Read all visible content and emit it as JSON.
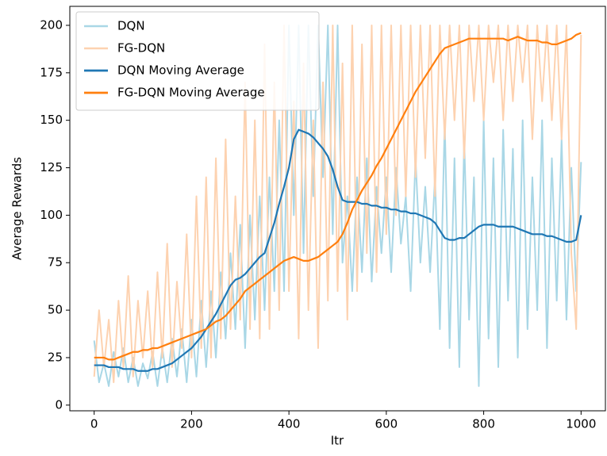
{
  "chart_data": {
    "type": "line",
    "xlabel": "Itr",
    "ylabel": "Average Rewards",
    "xlim": [
      -50,
      1050
    ],
    "ylim": [
      -3,
      210
    ],
    "xticks": [
      0,
      200,
      400,
      600,
      800,
      1000
    ],
    "yticks": [
      0,
      25,
      50,
      75,
      100,
      125,
      150,
      175,
      200
    ],
    "legend": "upper left",
    "x": [
      0,
      10,
      20,
      30,
      40,
      50,
      60,
      70,
      80,
      90,
      100,
      110,
      120,
      130,
      140,
      150,
      160,
      170,
      180,
      190,
      200,
      210,
      220,
      230,
      240,
      250,
      260,
      270,
      280,
      290,
      300,
      310,
      320,
      330,
      340,
      350,
      360,
      370,
      380,
      390,
      400,
      410,
      420,
      430,
      440,
      450,
      460,
      470,
      480,
      490,
      500,
      510,
      520,
      530,
      540,
      550,
      560,
      570,
      580,
      590,
      600,
      610,
      620,
      630,
      640,
      650,
      660,
      670,
      680,
      690,
      700,
      710,
      720,
      730,
      740,
      750,
      760,
      770,
      780,
      790,
      800,
      810,
      820,
      830,
      840,
      850,
      860,
      870,
      880,
      890,
      900,
      910,
      920,
      930,
      940,
      950,
      960,
      970,
      980,
      990,
      1000
    ],
    "series": [
      {
        "name": "DQN",
        "color": "#a9d7e6",
        "width": 2,
        "values": [
          34,
          12,
          22,
          10,
          28,
          15,
          30,
          12,
          25,
          10,
          22,
          14,
          28,
          10,
          30,
          12,
          35,
          15,
          40,
          12,
          45,
          15,
          55,
          20,
          60,
          25,
          70,
          35,
          80,
          40,
          95,
          30,
          100,
          45,
          110,
          50,
          120,
          60,
          150,
          60,
          200,
          100,
          200,
          80,
          200,
          110,
          200,
          120,
          200,
          90,
          200,
          75,
          110,
          60,
          120,
          70,
          130,
          65,
          115,
          80,
          120,
          70,
          125,
          85,
          110,
          60,
          130,
          75,
          115,
          70,
          120,
          40,
          150,
          30,
          130,
          20,
          140,
          45,
          120,
          10,
          150,
          35,
          130,
          20,
          145,
          55,
          135,
          25,
          150,
          40,
          120,
          50,
          150,
          30,
          130,
          55,
          140,
          45,
          125,
          60,
          128
        ]
      },
      {
        "name": "FG-DQN",
        "color": "#fdd2b0",
        "width": 2,
        "values": [
          15,
          50,
          20,
          45,
          12,
          55,
          20,
          68,
          15,
          55,
          25,
          60,
          20,
          70,
          25,
          85,
          20,
          65,
          30,
          90,
          25,
          110,
          30,
          120,
          25,
          130,
          35,
          140,
          40,
          110,
          45,
          170,
          40,
          150,
          35,
          190,
          40,
          170,
          50,
          200,
          60,
          160,
          35,
          180,
          50,
          150,
          30,
          170,
          55,
          200,
          60,
          180,
          45,
          200,
          60,
          190,
          80,
          200,
          70,
          200,
          90,
          200,
          100,
          200,
          110,
          200,
          120,
          200,
          130,
          200,
          110,
          200,
          140,
          200,
          150,
          200,
          130,
          200,
          160,
          200,
          150,
          200,
          170,
          200,
          150,
          200,
          160,
          200,
          170,
          200,
          140,
          200,
          160,
          200,
          150,
          200,
          140,
          200,
          80,
          40,
          195
        ]
      },
      {
        "name": "DQN Moving Average",
        "color": "#1f77b4",
        "width": 2.2,
        "values": [
          21,
          21,
          21,
          20,
          20,
          20,
          19,
          19,
          19,
          18,
          18,
          18,
          19,
          19,
          20,
          21,
          22,
          24,
          26,
          28,
          30,
          33,
          36,
          40,
          44,
          48,
          53,
          58,
          63,
          66,
          67,
          69,
          72,
          75,
          78,
          80,
          88,
          96,
          106,
          115,
          125,
          140,
          145,
          144,
          143,
          141,
          138,
          135,
          131,
          124,
          115,
          108,
          107,
          107,
          107,
          106,
          106,
          105,
          105,
          104,
          104,
          103,
          103,
          102,
          102,
          101,
          101,
          100,
          99,
          98,
          96,
          92,
          88,
          87,
          87,
          88,
          88,
          90,
          92,
          94,
          95,
          95,
          95,
          94,
          94,
          94,
          94,
          93,
          92,
          91,
          90,
          90,
          90,
          89,
          89,
          88,
          87,
          86,
          86,
          87,
          100
        ]
      },
      {
        "name": "FG-DQN Moving Average",
        "color": "#ff7f0e",
        "width": 2.2,
        "values": [
          25,
          25,
          25,
          24,
          24,
          25,
          26,
          27,
          28,
          28,
          29,
          29,
          30,
          30,
          31,
          32,
          33,
          34,
          35,
          36,
          37,
          38,
          39,
          40,
          42,
          44,
          45,
          47,
          50,
          53,
          56,
          60,
          62,
          64,
          66,
          68,
          70,
          72,
          74,
          76,
          77,
          78,
          77,
          76,
          76,
          77,
          78,
          80,
          82,
          84,
          86,
          90,
          96,
          103,
          108,
          113,
          117,
          121,
          126,
          130,
          135,
          140,
          145,
          150,
          155,
          160,
          165,
          169,
          173,
          177,
          181,
          185,
          188,
          189,
          190,
          191,
          192,
          193,
          193,
          193,
          193,
          193,
          193,
          193,
          193,
          192,
          193,
          194,
          193,
          192,
          192,
          192,
          191,
          191,
          190,
          190,
          191,
          192,
          193,
          195,
          196
        ]
      }
    ]
  }
}
